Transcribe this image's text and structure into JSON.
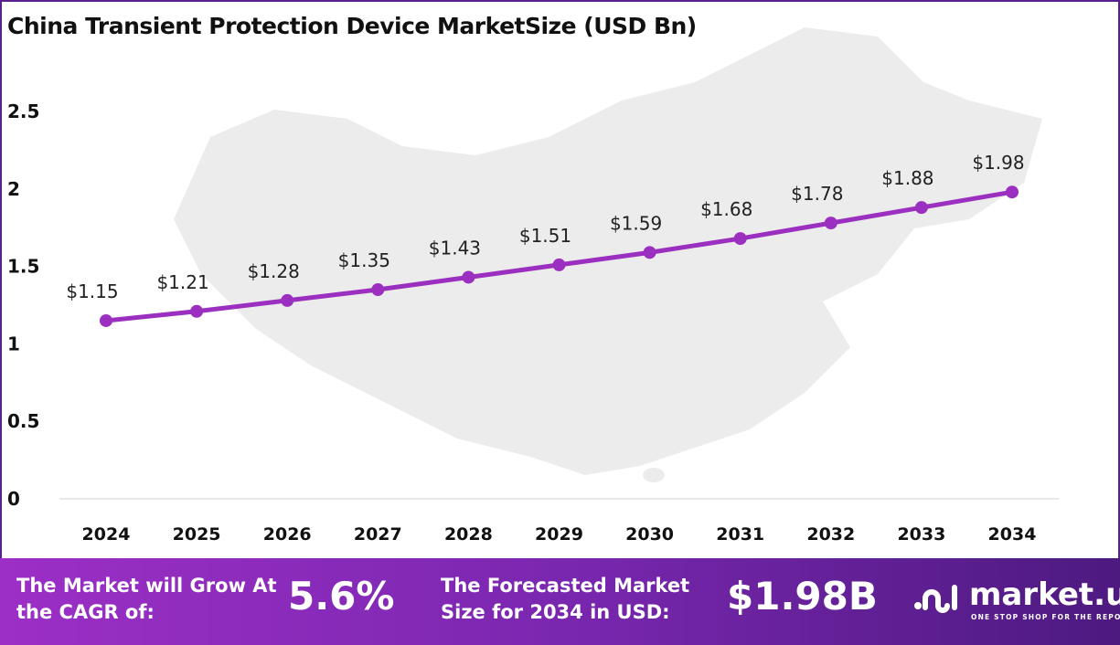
{
  "chart_data": {
    "type": "line",
    "title": "China Transient Protection Device MarketSize (USD Bn)",
    "categories": [
      "2024",
      "2025",
      "2026",
      "2027",
      "2028",
      "2029",
      "2030",
      "2031",
      "2032",
      "2033",
      "2034"
    ],
    "values": [
      1.15,
      1.21,
      1.28,
      1.35,
      1.43,
      1.51,
      1.59,
      1.68,
      1.78,
      1.88,
      1.98
    ],
    "data_labels": [
      "$1.15",
      "$1.21",
      "$1.28",
      "$1.35",
      "$1.43",
      "$1.51",
      "$1.59",
      "$1.68",
      "$1.78",
      "$1.88",
      "$1.98"
    ],
    "yticks": [
      "0",
      "0.5",
      "1",
      "1.5",
      "2",
      "2.5"
    ],
    "ylim": [
      0,
      2.5
    ],
    "grid": false,
    "line_color": "#9b30c0"
  },
  "banner": {
    "cagr_label": "The Market will Grow At the CAGR of:",
    "cagr_value": "5.6%",
    "forecast_label": "The Forecasted Market Size for 2034 in USD:",
    "forecast_value": "$1.98B",
    "logo_name": "market.us",
    "logo_tagline": "ONE STOP SHOP FOR THE REPORTS"
  }
}
